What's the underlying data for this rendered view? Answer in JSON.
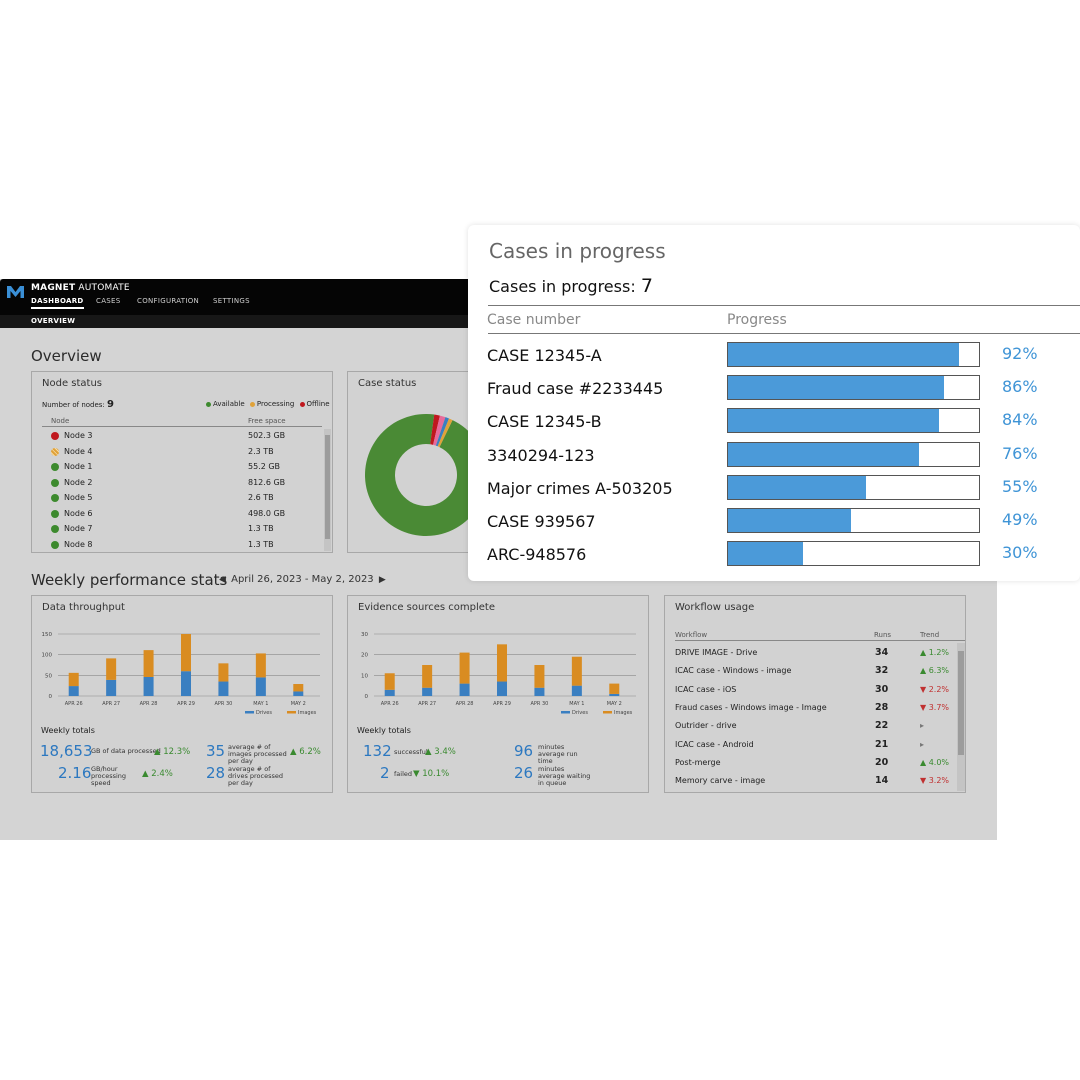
{
  "app": {
    "brand_bold": "MAGNET",
    "brand_rest": " AUTOMATE",
    "tabs": [
      "DASHBOARD",
      "CASES",
      "CONFIGURATION",
      "SETTINGS"
    ],
    "subtab": "OVERVIEW"
  },
  "overview": {
    "title": "Overview",
    "node_status": {
      "title": "Node status",
      "count_label": "Number of nodes:",
      "count": "9",
      "legend": [
        {
          "label": "Available",
          "color": "#3d8a2e"
        },
        {
          "label": "Processing",
          "color": "#e0a23a"
        },
        {
          "label": "Offline",
          "color": "#c0181e"
        }
      ],
      "col_node": "Node",
      "col_space": "Free space",
      "rows": [
        {
          "name": "Node 3",
          "space": "502.3 GB",
          "status": "offline"
        },
        {
          "name": "Node 4",
          "space": "2.3 TB",
          "status": "processing"
        },
        {
          "name": "Node 1",
          "space": "55.2 GB",
          "status": "available"
        },
        {
          "name": "Node 2",
          "space": "812.6 GB",
          "status": "available"
        },
        {
          "name": "Node 5",
          "space": "2.6 TB",
          "status": "available"
        },
        {
          "name": "Node 6",
          "space": "498.0 GB",
          "status": "available"
        },
        {
          "name": "Node 7",
          "space": "1.3 TB",
          "status": "available"
        },
        {
          "name": "Node 8",
          "space": "1.3 TB",
          "status": "available"
        }
      ]
    },
    "case_status": {
      "title": "Case status"
    }
  },
  "weekly": {
    "title": "Weekly performance stats",
    "date_range": "April 26, 2023 - May 2, 2023",
    "throughput": {
      "title": "Data throughput",
      "totals_label": "Weekly totals",
      "stats": [
        {
          "value": "18,653",
          "label": "GB of data processed",
          "change": "▲ 12.3%"
        },
        {
          "value": "2.16",
          "label": "GB/hour processing speed",
          "change": "▲ 2.4%"
        },
        {
          "value": "35",
          "label": "average # of images processed per day",
          "change": "▲ 6.2%"
        },
        {
          "value": "28",
          "label": "average # of drives processed per day",
          "change": ""
        }
      ]
    },
    "evidence": {
      "title": "Evidence sources complete",
      "totals_label": "Weekly totals",
      "stats": [
        {
          "value": "132",
          "label": "successful",
          "change": "▲ 3.4%"
        },
        {
          "value": "2",
          "label": "failed",
          "change": "▼ 10.1%"
        },
        {
          "value": "96",
          "label": "minutes average run time",
          "change": ""
        },
        {
          "value": "26",
          "label": "minutes average waiting in queue",
          "change": ""
        }
      ]
    },
    "workflow": {
      "title": "Workflow usage",
      "col_workflow": "Workflow",
      "col_runs": "Runs",
      "col_trend": "Trend",
      "rows": [
        {
          "name": "DRIVE IMAGE - Drive",
          "runs": "34",
          "trend": "▲ 1.2%",
          "dir": "up"
        },
        {
          "name": "ICAC case - Windows - image",
          "runs": "32",
          "trend": "▲ 6.3%",
          "dir": "up"
        },
        {
          "name": "ICAC case - iOS",
          "runs": "30",
          "trend": "▼ 2.2%",
          "dir": "down"
        },
        {
          "name": "Fraud cases - Windows image - Image",
          "runs": "28",
          "trend": "▼ 3.7%",
          "dir": "down"
        },
        {
          "name": "Outrider - drive",
          "runs": "22",
          "trend": "▸",
          "dir": "flat"
        },
        {
          "name": "ICAC case - Android",
          "runs": "21",
          "trend": "▸",
          "dir": "flat"
        },
        {
          "name": "Post-merge",
          "runs": "20",
          "trend": "▲ 4.0%",
          "dir": "up"
        },
        {
          "name": "Memory carve - image",
          "runs": "14",
          "trend": "▼ 3.2%",
          "dir": "down"
        }
      ]
    }
  },
  "chart_data": [
    {
      "type": "bar",
      "title": "Data throughput",
      "stacked": true,
      "categories": [
        "APR 26",
        "APR 27",
        "APR 28",
        "APR 29",
        "APR 30",
        "MAY 1",
        "MAY 2"
      ],
      "series": [
        {
          "name": "Drives",
          "color": "#3a7fc1",
          "values": [
            24,
            39,
            46,
            60,
            35,
            45,
            11
          ]
        },
        {
          "name": "Images",
          "color": "#d98c21",
          "values": [
            32,
            52,
            65,
            90,
            44,
            58,
            18
          ]
        }
      ],
      "yticks": [
        0,
        50,
        100,
        150
      ],
      "ylim": [
        0,
        150
      ]
    },
    {
      "type": "bar",
      "title": "Evidence sources complete",
      "stacked": true,
      "categories": [
        "APR 26",
        "APR 27",
        "APR 28",
        "APR 29",
        "APR 30",
        "MAY 1",
        "MAY 2"
      ],
      "series": [
        {
          "name": "Drives",
          "color": "#3a7fc1",
          "values": [
            3,
            4,
            6,
            7,
            4,
            5,
            1
          ]
        },
        {
          "name": "Images",
          "color": "#d98c21",
          "values": [
            8,
            11,
            15,
            18,
            11,
            14,
            5
          ]
        }
      ],
      "yticks": [
        0,
        10,
        20,
        30
      ],
      "ylim": [
        0,
        30
      ]
    },
    {
      "type": "pie",
      "title": "Case status",
      "donut": true,
      "slices": [
        {
          "value": 95,
          "color": "#4a8a35"
        },
        {
          "value": 1.5,
          "color": "#c0181e"
        },
        {
          "value": 1.5,
          "color": "#e86a9a"
        },
        {
          "value": 1,
          "color": "#3a7fc1"
        },
        {
          "value": 1,
          "color": "#e0a23a"
        }
      ]
    }
  ],
  "cases_card": {
    "title": "Cases in progress",
    "count_label": "Cases in progress:",
    "count": "7",
    "col_case": "Case number",
    "col_progress": "Progress",
    "rows": [
      {
        "case": "CASE 12345-A",
        "progress": 0.92,
        "pct": "92%"
      },
      {
        "case": "Fraud case #2233445",
        "progress": 0.86,
        "pct": "86%"
      },
      {
        "case": "CASE 12345-B",
        "progress": 0.84,
        "pct": "84%"
      },
      {
        "case": "3340294-123",
        "progress": 0.76,
        "pct": "76%"
      },
      {
        "case": "Major crimes A-503205",
        "progress": 0.55,
        "pct": "55%"
      },
      {
        "case": "CASE 939567",
        "progress": 0.49,
        "pct": "49%"
      },
      {
        "case": "ARC-948576",
        "progress": 0.3,
        "pct": "30%"
      }
    ]
  }
}
